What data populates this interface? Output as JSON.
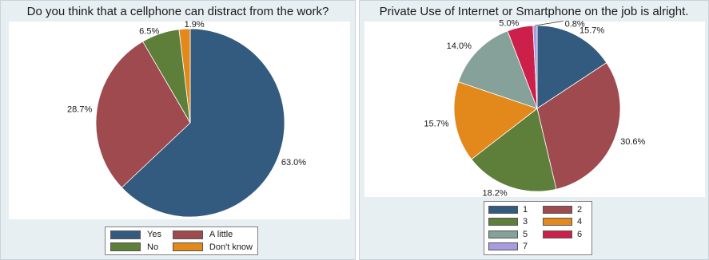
{
  "chart_data": [
    {
      "type": "pie",
      "title": "Do you think that a cellphone can distract from the work?",
      "categories": [
        "Yes",
        "A little",
        "No",
        "Don't know"
      ],
      "values": [
        63.0,
        28.7,
        6.5,
        1.9
      ],
      "labels": [
        "63.0%",
        "28.7%",
        "6.5%",
        "1.9%"
      ],
      "colors": [
        "#335a7f",
        "#9e4a4f",
        "#5d7f3a",
        "#e3881b"
      ],
      "legend": {
        "placement": "bottom",
        "entries": [
          "Yes",
          "A little",
          "No",
          "Don't know"
        ]
      }
    },
    {
      "type": "pie",
      "title": "Private Use of Internet or Smartphone on the job is alright.",
      "categories": [
        "1",
        "2",
        "3",
        "4",
        "5",
        "6",
        "7"
      ],
      "values": [
        15.7,
        30.6,
        18.2,
        15.7,
        14.0,
        5.0,
        0.8
      ],
      "labels": [
        "15.7%",
        "30.6%",
        "18.2%",
        "15.7%",
        "14.0%",
        "5.0%",
        "0.8%"
      ],
      "colors": [
        "#335a7f",
        "#9e4a4f",
        "#5d7f3a",
        "#e3881b",
        "#86a09a",
        "#cc1f4a",
        "#a99be0"
      ],
      "legend": {
        "placement": "bottom",
        "entries": [
          "1",
          "2",
          "3",
          "4",
          "5",
          "6",
          "7"
        ]
      }
    }
  ]
}
